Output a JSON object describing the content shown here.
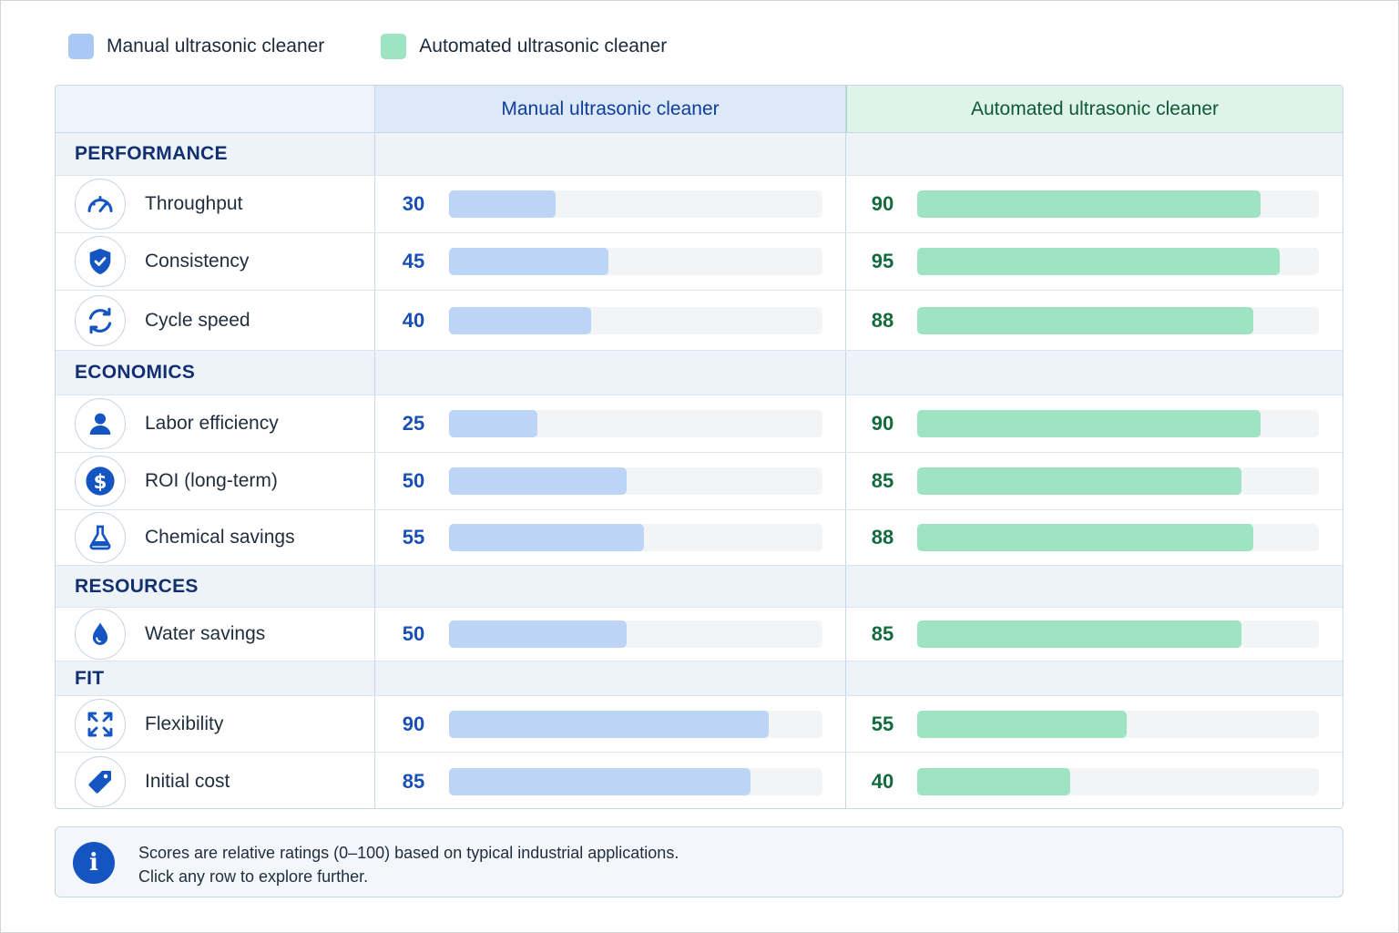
{
  "legend": {
    "manual": {
      "label": "Manual ultrasonic cleaner",
      "color": "#a9c8f3"
    },
    "auto": {
      "label": "Automated ultrasonic cleaner",
      "color": "#9ee3c2"
    }
  },
  "table": {
    "header": {
      "manual": "Manual ultrasonic cleaner",
      "auto": "Automated ultrasonic cleaner"
    },
    "sections": [
      {
        "title": "PERFORMANCE",
        "metrics": [
          {
            "label": "Throughput",
            "icon": "speedometer-icon",
            "manual": 30,
            "auto": 90
          },
          {
            "label": "Consistency",
            "icon": "shield-check-icon",
            "manual": 45,
            "auto": 95
          },
          {
            "label": "Cycle speed",
            "icon": "refresh-icon",
            "manual": 40,
            "auto": 88
          }
        ]
      },
      {
        "title": "ECONOMICS",
        "metrics": [
          {
            "label": "Labor efficiency",
            "icon": "person-icon",
            "manual": 25,
            "auto": 90
          },
          {
            "label": "ROI (long-term)",
            "icon": "dollar-icon",
            "manual": 50,
            "auto": 85
          },
          {
            "label": "Chemical savings",
            "icon": "flask-icon",
            "manual": 55,
            "auto": 88
          }
        ]
      },
      {
        "title": "RESOURCES",
        "metrics": [
          {
            "label": "Water savings",
            "icon": "water-drop-icon",
            "manual": 50,
            "auto": 85
          }
        ]
      },
      {
        "title": "FIT",
        "metrics": [
          {
            "label": "Flexibility",
            "icon": "expand-arrows-icon",
            "manual": 90,
            "auto": 55
          },
          {
            "label": "Initial cost",
            "icon": "price-tag-icon",
            "manual": 85,
            "auto": 40
          }
        ]
      }
    ]
  },
  "note": {
    "line1": "Scores are relative ratings (0–100) based on typical industrial applications.",
    "line2": "Click any row to explore further."
  },
  "colors": {
    "accent_blue": "#1455c2",
    "manual_text": "#1a4fb5",
    "auto_text": "#116b3c"
  }
}
